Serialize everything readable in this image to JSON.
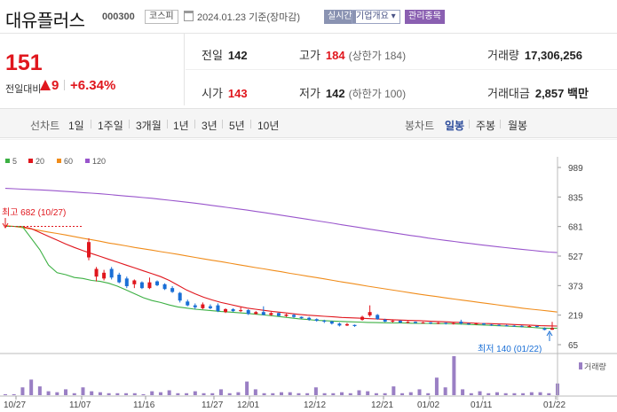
{
  "header": {
    "stock_name": "대유플러스",
    "code": "000300",
    "market": "코스피",
    "date": "2024.01.23  기준(장마감)",
    "realtime_label": "실시간",
    "company_label": "기업개요",
    "managed_label": "관리종목"
  },
  "price": {
    "current": "151",
    "change_label": "전일대비",
    "change": "9",
    "change_pct": "+6.34%"
  },
  "stats": {
    "prev_close_label": "전일",
    "prev_close": "142",
    "high_label": "고가",
    "high": "184",
    "upper_limit": "(상한가 184)",
    "volume_label": "거래량",
    "volume": "17,306,256",
    "open_label": "시가",
    "open": "143",
    "low_label": "저가",
    "low": "142",
    "lower_limit": "(하한가 100)",
    "amount_label": "거래대금",
    "amount": "2,857 백만"
  },
  "toolbar": {
    "line_label": "선차트",
    "periods": [
      "1일",
      "1주일",
      "3개월",
      "1년",
      "3년",
      "5년",
      "10년"
    ],
    "candle_label": "봉차트",
    "candle_periods": [
      "일봉",
      "주봉",
      "월봉"
    ],
    "active_candle": "일봉"
  },
  "colors": {
    "up": "#e0161d",
    "down": "#1a6fd6",
    "ma5": "#3cb043",
    "ma20": "#e0161d",
    "ma60": "#f08c1a",
    "ma120": "#9955cc",
    "volume": "#9a7fc4"
  },
  "chart_data": {
    "type": "candlestick",
    "legend": [
      "5",
      "20",
      "60",
      "120"
    ],
    "y_ticks": [
      65,
      219,
      373,
      527,
      681,
      835,
      989
    ],
    "x_labels": [
      "10/27",
      "11/07",
      "11/16",
      "11/27",
      "12/01",
      "12/12",
      "12/21",
      "01/02",
      "01/11",
      "01/22"
    ],
    "annotations": {
      "high": "최고 682 (10/27)",
      "low": "최저 140 (01/22)"
    },
    "volume_label": "거래량",
    "flat_close": 682,
    "candles": [
      {
        "o": 520,
        "c": 600,
        "h": 620,
        "l": 505
      },
      {
        "o": 420,
        "c": 460,
        "h": 470,
        "l": 395
      },
      {
        "o": 410,
        "c": 440,
        "h": 455,
        "l": 400
      },
      {
        "o": 460,
        "c": 415,
        "h": 470,
        "l": 405
      },
      {
        "o": 430,
        "c": 390,
        "h": 440,
        "l": 385
      },
      {
        "o": 410,
        "c": 370,
        "h": 420,
        "l": 360
      },
      {
        "o": 380,
        "c": 400,
        "h": 405,
        "l": 360
      },
      {
        "o": 390,
        "c": 360,
        "h": 395,
        "l": 355
      },
      {
        "o": 360,
        "c": 390,
        "h": 415,
        "l": 355
      },
      {
        "o": 395,
        "c": 375,
        "h": 400,
        "l": 370
      },
      {
        "o": 380,
        "c": 355,
        "h": 385,
        "l": 350
      },
      {
        "o": 360,
        "c": 340,
        "h": 370,
        "l": 335
      },
      {
        "o": 335,
        "c": 295,
        "h": 340,
        "l": 285
      },
      {
        "o": 290,
        "c": 270,
        "h": 300,
        "l": 265
      },
      {
        "o": 270,
        "c": 260,
        "h": 280,
        "l": 250
      },
      {
        "o": 255,
        "c": 275,
        "h": 285,
        "l": 250
      },
      {
        "o": 265,
        "c": 255,
        "h": 275,
        "l": 250
      },
      {
        "o": 270,
        "c": 240,
        "h": 280,
        "l": 235
      },
      {
        "o": 235,
        "c": 250,
        "h": 255,
        "l": 230
      },
      {
        "o": 250,
        "c": 240,
        "h": 255,
        "l": 235
      },
      {
        "o": 240,
        "c": 245,
        "h": 260,
        "l": 235
      },
      {
        "o": 245,
        "c": 225,
        "h": 250,
        "l": 220
      },
      {
        "o": 225,
        "c": 235,
        "h": 240,
        "l": 222
      },
      {
        "o": 235,
        "c": 220,
        "h": 265,
        "l": 218
      },
      {
        "o": 220,
        "c": 230,
        "h": 235,
        "l": 215
      },
      {
        "o": 230,
        "c": 215,
        "h": 232,
        "l": 212
      },
      {
        "o": 215,
        "c": 222,
        "h": 226,
        "l": 210
      },
      {
        "o": 220,
        "c": 210,
        "h": 225,
        "l": 205
      },
      {
        "o": 210,
        "c": 203,
        "h": 212,
        "l": 200
      },
      {
        "o": 205,
        "c": 196,
        "h": 210,
        "l": 190
      },
      {
        "o": 198,
        "c": 190,
        "h": 202,
        "l": 185
      },
      {
        "o": 190,
        "c": 185,
        "h": 195,
        "l": 178
      },
      {
        "o": 186,
        "c": 175,
        "h": 190,
        "l": 170
      },
      {
        "o": 175,
        "c": 165,
        "h": 180,
        "l": 160
      },
      {
        "o": 165,
        "c": 172,
        "h": 178,
        "l": 162
      },
      {
        "o": 168,
        "c": 162,
        "h": 170,
        "l": 158
      },
      {
        "o": 195,
        "c": 210,
        "h": 216,
        "l": 190
      },
      {
        "o": 218,
        "c": 235,
        "h": 270,
        "l": 210
      },
      {
        "o": 220,
        "c": 198,
        "h": 225,
        "l": 195
      },
      {
        "o": 195,
        "c": 185,
        "h": 200,
        "l": 182
      },
      {
        "o": 185,
        "c": 190,
        "h": 195,
        "l": 180
      },
      {
        "o": 190,
        "c": 180,
        "h": 192,
        "l": 177
      },
      {
        "o": 180,
        "c": 184,
        "h": 188,
        "l": 176
      },
      {
        "o": 184,
        "c": 178,
        "h": 186,
        "l": 175
      },
      {
        "o": 178,
        "c": 181,
        "h": 184,
        "l": 175
      },
      {
        "o": 181,
        "c": 176,
        "h": 183,
        "l": 172
      },
      {
        "o": 176,
        "c": 179,
        "h": 182,
        "l": 172
      },
      {
        "o": 179,
        "c": 174,
        "h": 181,
        "l": 170
      },
      {
        "o": 174,
        "c": 177,
        "h": 180,
        "l": 170
      },
      {
        "o": 185,
        "c": 176,
        "h": 195,
        "l": 170
      },
      {
        "o": 176,
        "c": 173,
        "h": 178,
        "l": 168
      },
      {
        "o": 173,
        "c": 176,
        "h": 179,
        "l": 168
      },
      {
        "o": 176,
        "c": 170,
        "h": 178,
        "l": 166
      },
      {
        "o": 170,
        "c": 168,
        "h": 173,
        "l": 163
      },
      {
        "o": 168,
        "c": 166,
        "h": 171,
        "l": 162
      },
      {
        "o": 166,
        "c": 164,
        "h": 169,
        "l": 160
      },
      {
        "o": 164,
        "c": 163,
        "h": 167,
        "l": 158
      },
      {
        "o": 163,
        "c": 160,
        "h": 166,
        "l": 155
      },
      {
        "o": 160,
        "c": 162,
        "h": 165,
        "l": 156
      },
      {
        "o": 162,
        "c": 158,
        "h": 164,
        "l": 154
      },
      {
        "o": 150,
        "c": 142,
        "h": 155,
        "l": 140
      },
      {
        "o": 143,
        "c": 151,
        "h": 184,
        "l": 142
      }
    ],
    "volume": [
      1,
      1,
      8,
      16,
      9,
      4,
      3,
      6,
      2,
      8,
      4,
      3,
      2,
      2,
      2,
      2,
      1,
      4,
      3,
      5,
      2,
      2,
      4,
      2,
      2,
      6,
      2,
      3,
      14,
      6,
      2,
      2,
      3,
      3,
      2,
      2,
      8,
      2,
      2,
      3,
      2,
      5,
      4,
      2,
      2,
      9,
      2,
      3,
      6,
      2,
      18,
      8,
      40,
      6,
      2,
      4,
      2,
      3,
      2,
      2,
      2,
      3,
      3,
      2,
      12
    ],
    "ma5": [
      682,
      682,
      680,
      620,
      560,
      480,
      440,
      430,
      415,
      410,
      400,
      395,
      385,
      370,
      350,
      330,
      310,
      295,
      285,
      272,
      262,
      256,
      250,
      246,
      242,
      238,
      235,
      232,
      228,
      224,
      220,
      215,
      210,
      205,
      200,
      196,
      192,
      190,
      188,
      186,
      184,
      183,
      181,
      180,
      179,
      178,
      178,
      177,
      176,
      176,
      175,
      175,
      174,
      172,
      170,
      168,
      166,
      164,
      162,
      160,
      158,
      155,
      152,
      150,
      151
    ],
    "ma20": [
      682,
      682,
      680,
      670,
      650,
      630,
      610,
      590,
      572,
      555,
      540,
      525,
      510,
      495,
      480,
      465,
      450,
      435,
      420,
      400,
      375,
      350,
      330,
      312,
      298,
      285,
      275,
      265,
      256,
      250,
      244,
      238,
      233,
      228,
      223,
      219,
      216,
      213,
      210,
      207,
      205,
      203,
      201,
      199,
      197,
      195,
      193,
      191,
      190,
      188,
      186,
      184,
      182,
      180,
      178,
      176,
      175,
      173,
      172,
      170,
      168,
      166,
      164,
      163,
      162
    ],
    "ma60": [
      686,
      682,
      675,
      668,
      660,
      652,
      645,
      637,
      628,
      620,
      612,
      604,
      595,
      588,
      580,
      572,
      565,
      558,
      550,
      543,
      536,
      528,
      520,
      512,
      505,
      498,
      490,
      482,
      475,
      467,
      460,
      452,
      445,
      437,
      430,
      422,
      415,
      408,
      400,
      392,
      385,
      378,
      370,
      363,
      356,
      349,
      342,
      335,
      328,
      322,
      316,
      309,
      303,
      297,
      291,
      285,
      279,
      273,
      267,
      261,
      255,
      250,
      245,
      240,
      235
    ],
    "ma120": [
      880,
      878,
      876,
      874,
      872,
      870,
      867,
      864,
      861,
      858,
      855,
      852,
      848,
      844,
      840,
      836,
      832,
      828,
      823,
      818,
      813,
      808,
      803,
      797,
      791,
      785,
      779,
      773,
      767,
      760,
      754,
      747,
      740,
      733,
      726,
      719,
      712,
      705,
      698,
      690,
      683,
      676,
      669,
      662,
      655,
      648,
      641,
      634,
      628,
      621,
      615,
      609,
      603,
      597,
      592,
      586,
      581,
      576,
      571,
      566,
      561,
      557,
      552,
      548,
      545
    ]
  }
}
